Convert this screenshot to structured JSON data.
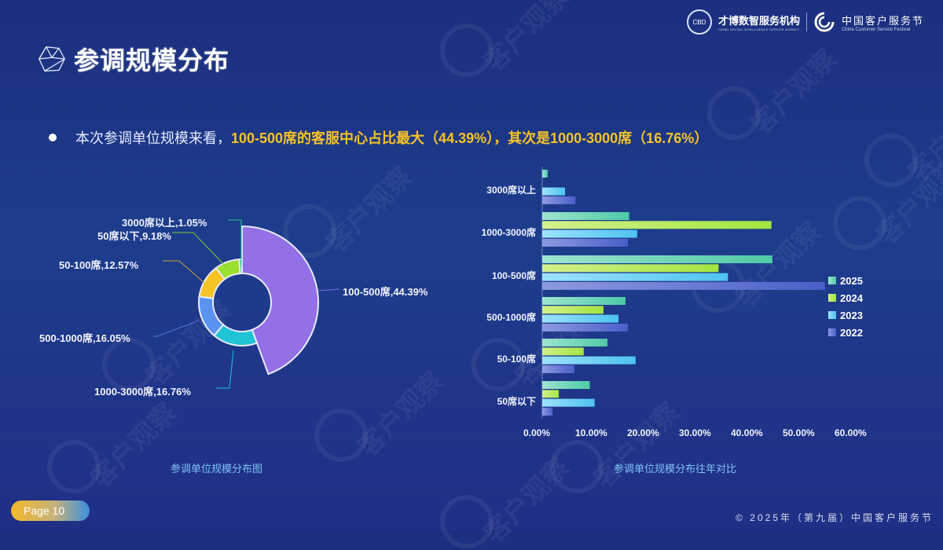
{
  "header": {
    "title": "参调规模分布",
    "logo1": {
      "name": "才博数智服务机构",
      "sub": "CAIBO DIGITAL INTELLIGENCE SERVICE AGENCY"
    },
    "logo2": {
      "name": "中国客户服务节",
      "sub": "China Customer Service Festival"
    }
  },
  "summary": {
    "prefix": "本次参调单位规模来看，",
    "highlight": "100-500席的客服中心占比最大（44.39%），其次是1000-3000席（16.76%）"
  },
  "watermark": "客户观察",
  "footer": {
    "page": "Page 10",
    "copyright": "© 2025年（第九届）中国客户服务节"
  },
  "colors": {
    "accent_yellow": "#f7c325",
    "caption_blue": "#7fc3f5",
    "s2025": "#5fd0b0",
    "s2024": "#a8e84a",
    "s2023": "#5cc8f2",
    "s2022": "#5066cc"
  },
  "chart_data": [
    {
      "type": "pie",
      "subtype": "rose-donut",
      "title": "参调单位规模分布图",
      "slices": [
        {
          "label": "100-500席",
          "value": 44.39,
          "color": "#9370e6",
          "display": "100-500席,44.39%"
        },
        {
          "label": "1000-3000席",
          "value": 16.76,
          "color": "#1fc4d6",
          "display": "1000-3000席,16.76%"
        },
        {
          "label": "500-1000席",
          "value": 16.05,
          "color": "#5b93f0",
          "display": "500-1000席,16.05%"
        },
        {
          "label": "50-100席",
          "value": 12.57,
          "color": "#f7c325",
          "display": "50-100席,12.57%"
        },
        {
          "label": "50席以下",
          "value": 9.18,
          "color": "#9be02e",
          "display": "50席以下,9.18%"
        },
        {
          "label": "3000席以上",
          "value": 1.05,
          "color": "#2fc49a",
          "display": "3000席以上,1.05%"
        }
      ]
    },
    {
      "type": "bar",
      "orientation": "horizontal",
      "title": "参调单位规模分布往年对比",
      "categories": [
        "3000席以上",
        "1000-3000席",
        "100-500席",
        "500-1000席",
        "50-100席",
        "50席以下"
      ],
      "series": [
        {
          "name": "2025",
          "values": [
            1.05,
            16.76,
            44.39,
            16.05,
            12.57,
            9.18
          ]
        },
        {
          "name": "2024",
          "values": [
            0,
            44.2,
            34.0,
            11.8,
            8.0,
            3.2
          ]
        },
        {
          "name": "2023",
          "values": [
            4.4,
            18.3,
            35.8,
            14.7,
            18.0,
            10.1
          ]
        },
        {
          "name": "2022",
          "values": [
            6.4,
            16.5,
            54.5,
            16.5,
            6.2,
            2.0
          ]
        }
      ],
      "xlim": [
        0,
        60
      ],
      "xticks": [
        "0.00%",
        "10.00%",
        "20.00%",
        "30.00%",
        "40.00%",
        "50.00%",
        "60.00%"
      ],
      "legend": [
        "2025",
        "2024",
        "2023",
        "2022"
      ],
      "legend_position": "right",
      "grid": false
    }
  ]
}
